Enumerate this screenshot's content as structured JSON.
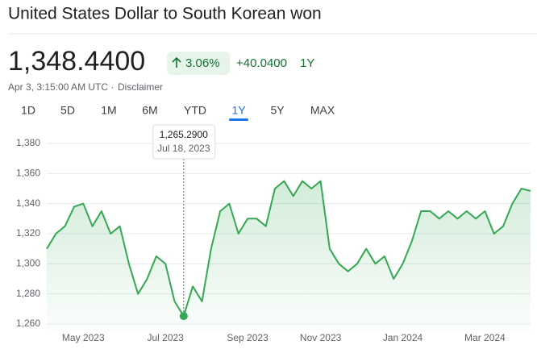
{
  "header": {
    "title": "United States Dollar to South Korean won",
    "price": "1,348.4400",
    "change_pct": "3.06%",
    "change_abs": "+40.0400",
    "period": "1Y",
    "timestamp": "Apr 3, 3:15:00 AM UTC ·",
    "disclaimer": "Disclaimer"
  },
  "tabs": [
    "1D",
    "5D",
    "1M",
    "6M",
    "YTD",
    "1Y",
    "5Y",
    "MAX"
  ],
  "selected_tab": 5,
  "chart_data": {
    "type": "line",
    "categories": [
      null,
      null,
      null,
      null,
      "May 2023",
      null,
      null,
      null,
      null,
      null,
      null,
      null,
      null,
      "Jul 2023",
      null,
      null,
      null,
      null,
      null,
      null,
      null,
      null,
      "Sep 2023",
      null,
      null,
      null,
      null,
      null,
      null,
      null,
      "Nov 2023",
      null,
      null,
      null,
      null,
      null,
      null,
      null,
      null,
      "Jan 2024",
      null,
      null,
      null,
      null,
      null,
      null,
      null,
      null,
      "Mar 2024",
      null,
      null,
      null,
      null,
      null
    ],
    "values": [
      1310,
      1320,
      1325,
      1338,
      1340,
      1325,
      1335,
      1320,
      1325,
      1300,
      1280,
      1290,
      1305,
      1300,
      1275,
      1265.29,
      1285,
      1275,
      1310,
      1335,
      1340,
      1320,
      1330,
      1330,
      1325,
      1350,
      1355,
      1345,
      1355,
      1350,
      1355,
      1310,
      1300,
      1295,
      1300,
      1310,
      1300,
      1305,
      1290,
      1300,
      1315,
      1335,
      1335,
      1330,
      1335,
      1330,
      1335,
      1330,
      1335,
      1320,
      1325,
      1340,
      1350,
      1348.44
    ],
    "color": "#34a853",
    "ylim": [
      1260,
      1380
    ],
    "yticks": [
      {
        "value": 1260,
        "label": "1,260"
      },
      {
        "value": 1280,
        "label": "1,280"
      },
      {
        "value": 1300,
        "label": "1,300"
      },
      {
        "value": 1320,
        "label": "1,320"
      },
      {
        "value": 1340,
        "label": "1,340"
      },
      {
        "value": 1360,
        "label": "1,360"
      },
      {
        "value": 1380,
        "label": "1,380"
      }
    ],
    "grid": true,
    "tooltip": {
      "index": 15,
      "value": "1,265.2900",
      "date": "Jul 18, 2023"
    }
  }
}
